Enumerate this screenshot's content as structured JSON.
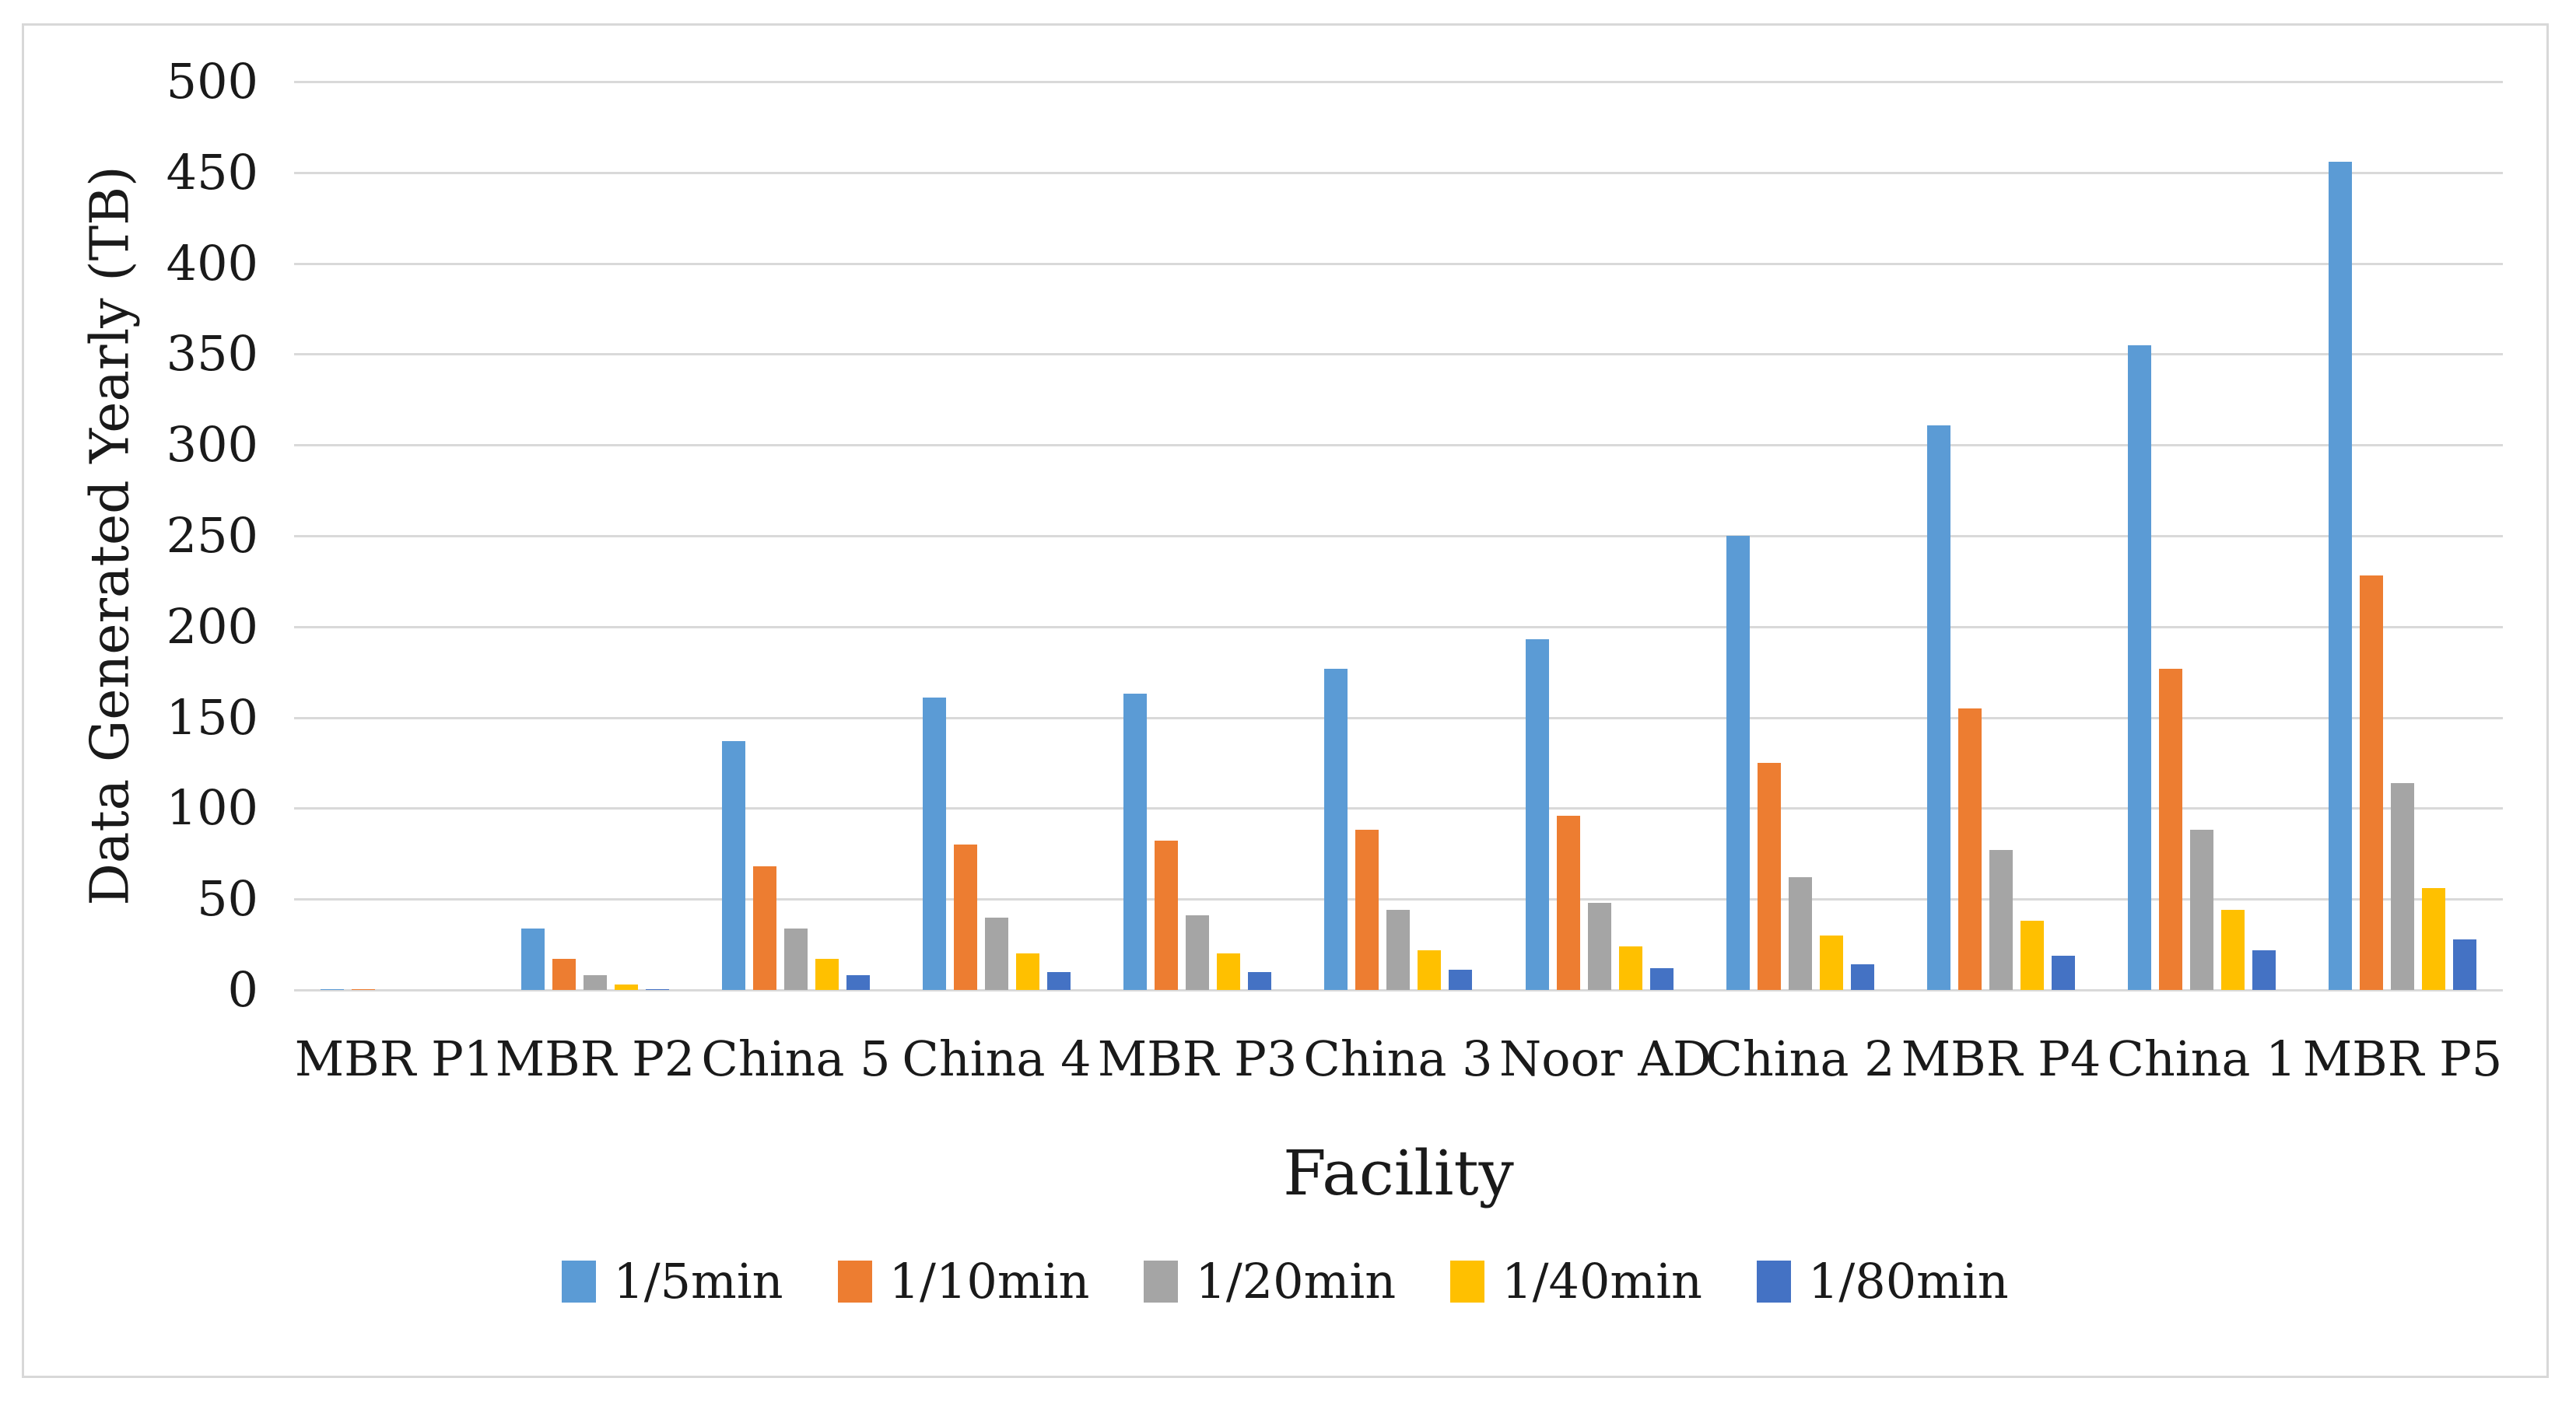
{
  "figure": {
    "background": "#FFFFFF",
    "border_color": "#D8D8D8",
    "gridline_color": "#D9D9D9",
    "text_color": "#1A1A1A"
  },
  "chart_data": {
    "type": "bar",
    "title": "",
    "xlabel": "Facility",
    "ylabel": "Data Generated Yearly (TB)",
    "ylim": [
      0,
      500
    ],
    "y_tick_step": 50,
    "y_ticks": [
      0,
      50,
      100,
      150,
      200,
      250,
      300,
      350,
      400,
      450,
      500
    ],
    "grid": "horizontal",
    "legend_position": "bottom",
    "categories": [
      "MBR P1",
      "MBR P2",
      "China 5",
      "China 4",
      "MBR P3",
      "China 3",
      "Noor AD",
      "China 2",
      "MBR P4",
      "China 1",
      "MBR P5"
    ],
    "series": [
      {
        "name": "1/5min",
        "color": "#5B9BD5",
        "values": [
          0.5,
          34,
          137,
          161,
          163,
          177,
          193,
          250,
          311,
          355,
          456
        ]
      },
      {
        "name": "1/10min",
        "color": "#ED7D31",
        "values": [
          0.3,
          17,
          68,
          80,
          82,
          88,
          96,
          125,
          155,
          177,
          228
        ]
      },
      {
        "name": "1/20min",
        "color": "#A5A5A5",
        "values": [
          0.1,
          8,
          34,
          40,
          41,
          44,
          48,
          62,
          77,
          88,
          114
        ]
      },
      {
        "name": "1/40min",
        "color": "#FFC000",
        "values": [
          0,
          3,
          17,
          20,
          20,
          22,
          24,
          30,
          38,
          44,
          56
        ]
      },
      {
        "name": "1/80min",
        "color": "#4472C4",
        "values": [
          0,
          0.5,
          8,
          10,
          10,
          11,
          12,
          14,
          19,
          22,
          28
        ]
      }
    ]
  }
}
